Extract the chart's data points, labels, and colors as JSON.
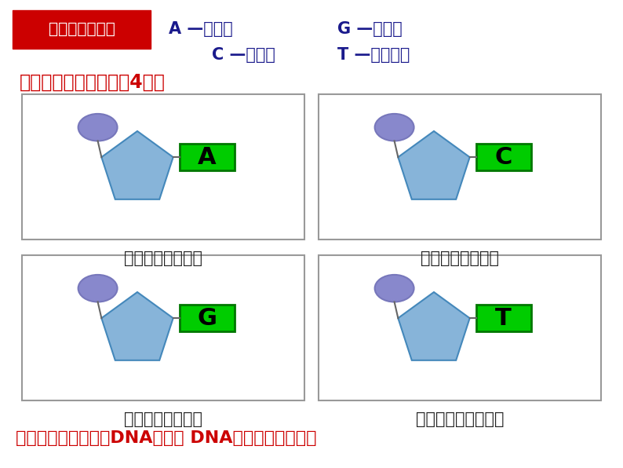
{
  "bg_color": "#ffffff",
  "title_box_color": "#cc0000",
  "title_box_text": "含氮碱基种类：",
  "title_box_text_color": "#ffffff",
  "line1_left": "A —腺嘧呉",
  "line1_right": "G —鸟嘧呉",
  "line2_left": "C —胞噀啶",
  "line2_right": "T —胸腺噀啶",
  "subtitle_text": "因此，脱氧核苷酸也有4种：",
  "subtitle_color": "#cc0000",
  "header_text_color": "#1a1a8c",
  "pentagon_color": "#87b4d9",
  "pentagon_edge_color": "#4488bb",
  "oval_color": "#8888cc",
  "oval_edge_color": "#6666aa",
  "base_box_color": "#00cc00",
  "base_box_edge_color": "#008800",
  "base_text_color": "#000000",
  "outer_box_edge_color": "#888888",
  "outer_box_fill_color": "#ffffff",
  "labels": [
    "A",
    "C",
    "G",
    "T"
  ],
  "nucleotide_names": [
    "腺嘧呉脱氧核苷酸",
    "胞噀啶脱氧核苷酸",
    "鸟嘧呉脱氧核苷酸",
    "胸腺噀啶脱氧核苷酸"
  ],
  "bottom_text_normal": "脱氧核苷酸如何形成",
  "bottom_text_bold": "DNA",
  "bottom_text_normal2": "分子？ ",
  "bottom_text_bold2": "DNA",
  "bottom_text_normal3": "的结构又是如何？",
  "bottom_text_color": "#cc0000"
}
